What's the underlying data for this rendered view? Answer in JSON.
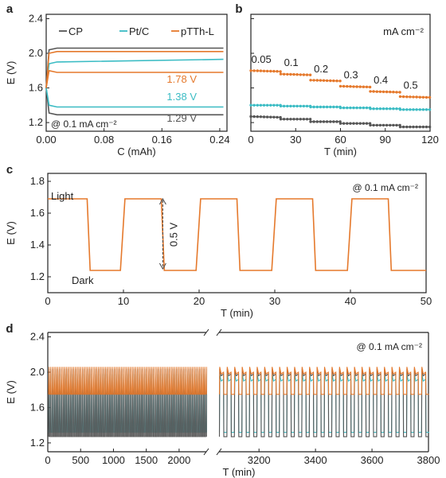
{
  "colors": {
    "cp": "#555555",
    "ptc": "#3bbcc4",
    "pTTh": "#e5792c",
    "axis": "#222222"
  },
  "chart_data": [
    {
      "panel": "a",
      "type": "line",
      "xlabel": "C (mAh)",
      "ylabel": "E (V)",
      "xlim": [
        0,
        0.25
      ],
      "ylim": [
        1.1,
        2.45
      ],
      "xticks": [
        "0.00",
        "0.08",
        "0.16",
        "0.24"
      ],
      "xtick_values": [
        0,
        0.08,
        0.16,
        0.24
      ],
      "yticks": [
        "1.2",
        "1.6",
        "2.0",
        "2.4"
      ],
      "ytick_values": [
        1.2,
        1.6,
        2.0,
        2.4
      ],
      "legend": [
        "CP",
        "Pt/C",
        "pTTh-L"
      ],
      "condition": "@ 0.1 mA cm⁻²",
      "annotations": [
        {
          "text": "1.78 V",
          "series": "pTTh-L"
        },
        {
          "text": "1.38 V",
          "series": "Pt/C"
        },
        {
          "text": "1.29 V",
          "series": "CP"
        }
      ],
      "series": [
        {
          "name": "CP",
          "charge_plateau": 2.06,
          "discharge_plateau": 1.29
        },
        {
          "name": "Pt/C",
          "charge_plateau": 1.9,
          "discharge_plateau": 1.38
        },
        {
          "name": "pTTh-L",
          "charge_plateau": 2.02,
          "discharge_plateau": 1.78
        }
      ]
    },
    {
      "panel": "b",
      "type": "line",
      "xlabel": "T (min)",
      "ylabel": "",
      "unit_label": "mA cm⁻²",
      "xlim": [
        0,
        120
      ],
      "ylim": [
        1.1,
        2.45
      ],
      "xticks": [
        "0",
        "30",
        "60",
        "90",
        "120"
      ],
      "xtick_values": [
        0,
        30,
        60,
        90,
        120
      ],
      "current_labels": [
        "0.05",
        "0.1",
        "0.2",
        "0.3",
        "0.4",
        "0.5"
      ],
      "series": [
        {
          "name": "pTTh-L",
          "x": [
            0,
            10,
            20,
            30,
            40,
            50,
            60,
            70,
            80,
            90,
            100,
            110,
            120
          ],
          "y": [
            1.8,
            1.79,
            1.76,
            1.75,
            1.69,
            1.68,
            1.62,
            1.61,
            1.56,
            1.55,
            1.5,
            1.49,
            1.49
          ]
        },
        {
          "name": "Pt/C",
          "x": [
            0,
            10,
            20,
            30,
            40,
            50,
            60,
            70,
            80,
            90,
            100,
            110,
            120
          ],
          "y": [
            1.4,
            1.4,
            1.39,
            1.39,
            1.38,
            1.38,
            1.37,
            1.37,
            1.36,
            1.36,
            1.35,
            1.35,
            1.35
          ]
        },
        {
          "name": "CP",
          "x": [
            0,
            10,
            20,
            30,
            40,
            50,
            60,
            70,
            80,
            90,
            100,
            110,
            120
          ],
          "y": [
            1.27,
            1.26,
            1.24,
            1.24,
            1.21,
            1.21,
            1.19,
            1.19,
            1.17,
            1.17,
            1.15,
            1.15,
            1.15
          ]
        }
      ]
    },
    {
      "panel": "c",
      "type": "line",
      "xlabel": "T (min)",
      "ylabel": "E (V)",
      "xlim": [
        0,
        50
      ],
      "ylim": [
        1.1,
        1.85
      ],
      "xticks": [
        "0",
        "10",
        "20",
        "30",
        "40",
        "50"
      ],
      "xtick_values": [
        0,
        10,
        20,
        30,
        40,
        50
      ],
      "yticks": [
        "1.2",
        "1.4",
        "1.6",
        "1.8"
      ],
      "ytick_values": [
        1.2,
        1.4,
        1.6,
        1.8
      ],
      "condition": "@ 0.1 mA cm⁻²",
      "annotations": [
        {
          "text": "Light"
        },
        {
          "text": "Dark"
        },
        {
          "text": "0.5 V"
        }
      ],
      "series": [
        {
          "name": "pTTh-L",
          "light_V": 1.69,
          "dark_V": 1.24,
          "x": [
            0,
            5.2,
            5.6,
            9.6,
            10.2,
            15,
            15.4,
            19.6,
            20.2,
            25,
            25.4,
            29.6,
            30.2,
            35,
            35.4,
            39.6,
            40.2,
            45,
            45.4,
            50
          ],
          "y": [
            1.69,
            1.69,
            1.24,
            1.24,
            1.69,
            1.69,
            1.24,
            1.24,
            1.69,
            1.69,
            1.24,
            1.24,
            1.69,
            1.69,
            1.24,
            1.24,
            1.69,
            1.69,
            1.24,
            1.24
          ]
        }
      ]
    },
    {
      "panel": "d",
      "type": "line",
      "xlabel": "T (min)",
      "ylabel": "E (V)",
      "broken_axis": true,
      "xlim_left": [
        0,
        2450
      ],
      "xlim_right": [
        3050,
        3800
      ],
      "ylim": [
        1.1,
        2.45
      ],
      "xticks_left": [
        "0",
        "500",
        "1000",
        "1500",
        "2000"
      ],
      "xtick_values_left": [
        0,
        500,
        1000,
        1500,
        2000
      ],
      "xticks_right": [
        "3200",
        "3400",
        "3600",
        "3800"
      ],
      "xtick_values_right": [
        3200,
        3400,
        3600,
        3800
      ],
      "yticks": [
        "1.2",
        "1.6",
        "2.0",
        "2.4"
      ],
      "ytick_values": [
        1.2,
        1.6,
        2.0,
        2.4
      ],
      "condition": "@ 0.1 mA cm⁻²",
      "series": [
        {
          "name": "CP",
          "high": 2.04,
          "low": 1.27
        },
        {
          "name": "Pt/C",
          "high": 1.98,
          "low": 1.32
        },
        {
          "name": "pTTh-L",
          "high": 2.06,
          "low": 1.75
        }
      ]
    }
  ]
}
